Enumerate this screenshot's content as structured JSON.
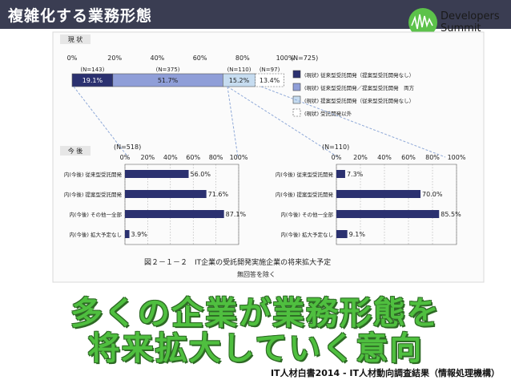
{
  "slide": {
    "title": "複雑化する業務形態",
    "logo_line1": "Developers",
    "logo_line2": "Summit",
    "overlay_line1": "多くの企業が業務形態を",
    "overlay_line2": "将来拡大していく意向",
    "source": "IT人材白書2014 - IT人材動向調査結果（情報処理機構）",
    "colors": {
      "header": "#3a3d52",
      "navy": "#2b3170",
      "periwinkle": "#8f9ed8",
      "lightblue": "#c6dcf0",
      "green": "#4fbf3f"
    }
  },
  "chart_data": [
    {
      "type": "bar",
      "orientation": "horizontal-stacked",
      "panel_label": "現 状",
      "n_total": "(N=725)",
      "xlim": [
        0,
        100
      ],
      "x_ticks": [
        "0%",
        "20%",
        "40%",
        "60%",
        "80%",
        "100%"
      ],
      "segments": [
        {
          "n_label": "(N=143)",
          "value": 19.1,
          "label": "19.1%"
        },
        {
          "n_label": "(N=375)",
          "value": 51.7,
          "label": "51.7%"
        },
        {
          "n_label": "(N=110)",
          "value": 15.2,
          "label": "15.2%"
        },
        {
          "n_label": "(N=97)",
          "value": 13.4,
          "label": "13.4%"
        }
      ],
      "legend": [
        "(現状) 従来型受託開発（提案型受託開発なし）",
        "(現状) 従来型受託開発／提案型受託開発　両方",
        "(現状) 提案型受託開発（従来型受託開発なし）",
        "(現状) 受託開発以外"
      ]
    },
    {
      "type": "bar",
      "orientation": "horizontal",
      "panel_label": "今 後",
      "n": "(N=518)",
      "xlim": [
        0,
        100
      ],
      "x_ticks": [
        "0%",
        "20%",
        "40%",
        "60%",
        "80%",
        "100%"
      ],
      "categories": [
        "内(今後) 従来型受託開発",
        "内(今後) 提案型受託開発",
        "内(今後) その他一全部",
        "内(今後) 拡大予定なし"
      ],
      "values": [
        56.0,
        71.6,
        87.1,
        3.9
      ],
      "value_labels": [
        "56.0%",
        "71.6%",
        "87.1%",
        "3.9%"
      ]
    },
    {
      "type": "bar",
      "orientation": "horizontal",
      "n": "(N=110)",
      "xlim": [
        0,
        100
      ],
      "x_ticks": [
        "0%",
        "20%",
        "40%",
        "60%",
        "80%",
        "100%"
      ],
      "categories": [
        "内(今後) 従来型受託開発",
        "内(今後) 提案型受託開発",
        "内(今後) その他一全部",
        "内(今後) 拡大予定なし"
      ],
      "values": [
        7.3,
        70.0,
        85.5,
        9.1
      ],
      "value_labels": [
        "7.3%",
        "70.0%",
        "85.5%",
        "9.1%"
      ]
    }
  ],
  "caption": {
    "title": "図２－１－２　IT企業の受託開発実施企業の将来拡大予定",
    "note": "無回答を除く"
  }
}
